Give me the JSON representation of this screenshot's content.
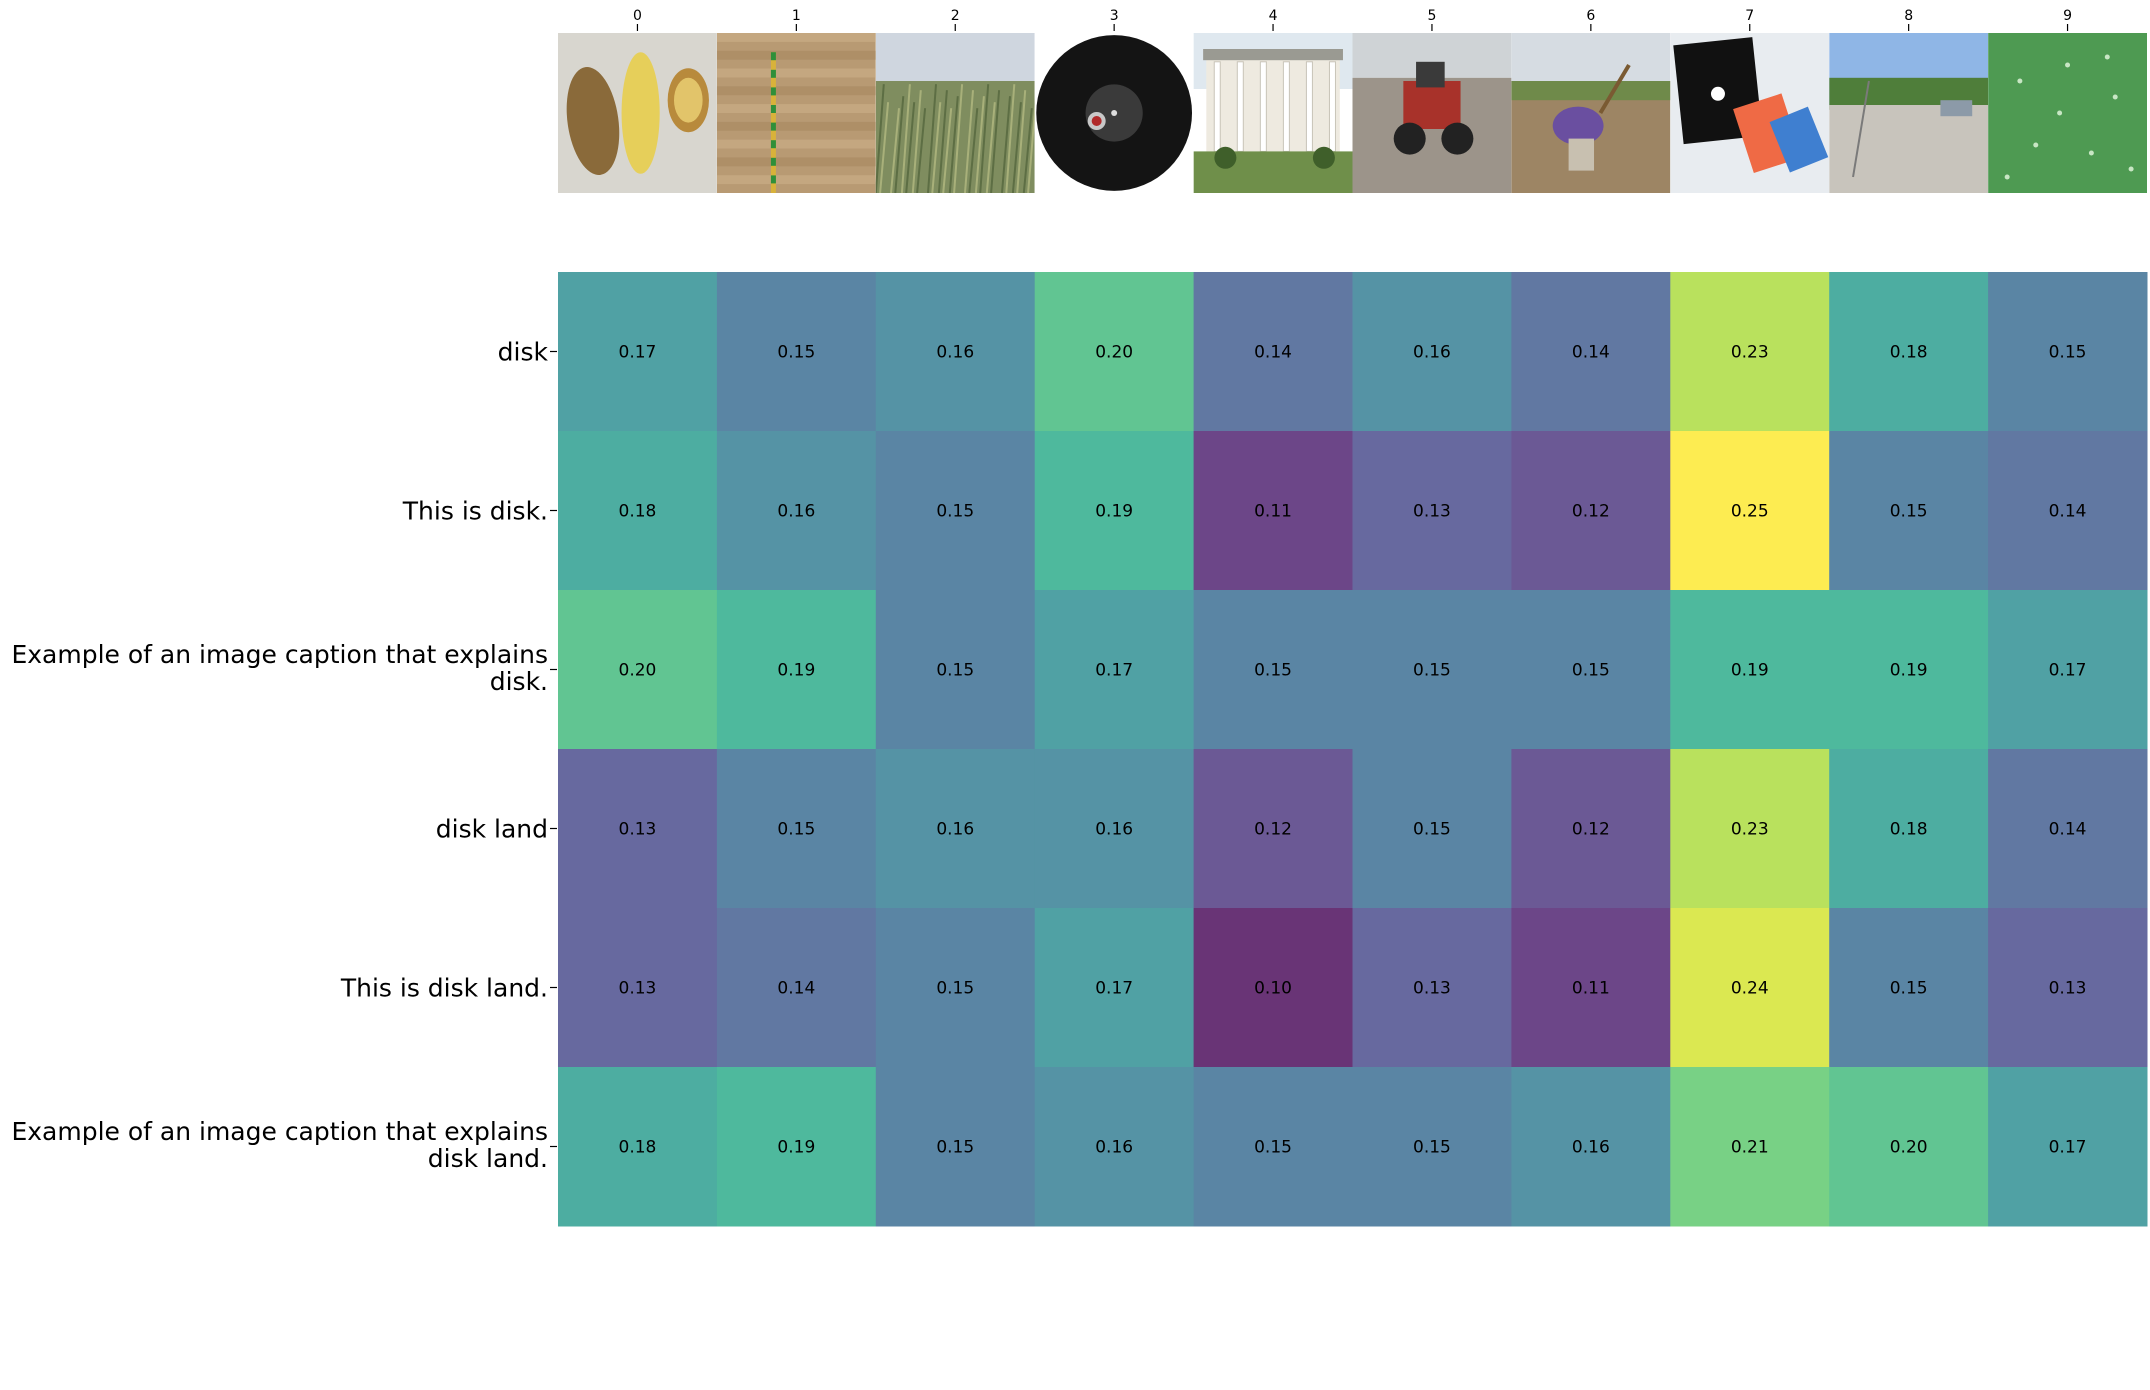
{
  "chart_data": {
    "type": "heatmap",
    "title": "",
    "xlabel": "",
    "ylabel": "",
    "columns": [
      "0",
      "1",
      "2",
      "3",
      "4",
      "5",
      "6",
      "7",
      "8",
      "9"
    ],
    "rows": [
      "disk",
      "This is disk.",
      "Example of an image caption that explains disk.",
      "disk land",
      "This is disk land.",
      "Example of an image caption that explains disk land."
    ],
    "row_label_lines": [
      [
        "disk"
      ],
      [
        "This is disk."
      ],
      [
        "Example of an image caption that explains",
        "disk."
      ],
      [
        "disk land"
      ],
      [
        "This is disk land."
      ],
      [
        "Example of an image caption that explains",
        "disk land."
      ]
    ],
    "values": [
      [
        0.17,
        0.15,
        0.16,
        0.2,
        0.14,
        0.16,
        0.14,
        0.23,
        0.18,
        0.15
      ],
      [
        0.18,
        0.16,
        0.15,
        0.19,
        0.11,
        0.13,
        0.12,
        0.25,
        0.15,
        0.14
      ],
      [
        0.2,
        0.19,
        0.15,
        0.17,
        0.15,
        0.15,
        0.15,
        0.19,
        0.19,
        0.17
      ],
      [
        0.13,
        0.15,
        0.16,
        0.16,
        0.12,
        0.15,
        0.12,
        0.23,
        0.18,
        0.14
      ],
      [
        0.13,
        0.14,
        0.15,
        0.17,
        0.1,
        0.13,
        0.11,
        0.24,
        0.15,
        0.13
      ],
      [
        0.18,
        0.19,
        0.15,
        0.16,
        0.15,
        0.15,
        0.16,
        0.21,
        0.2,
        0.17
      ]
    ],
    "color_range": [
      0.1,
      0.25
    ],
    "colormap": "viridis",
    "cell_alpha": 0.8,
    "value_format": "0.00",
    "colorbar": false,
    "grid": false,
    "legend": "none",
    "column_images": [
      "potatoes",
      "soil-profile",
      "wheat-field",
      "vinyl-record",
      "plantation-house",
      "tractor",
      "farmer-with-hoe",
      "floppy-disks",
      "gravel-lot",
      "green-microscopy"
    ]
  }
}
